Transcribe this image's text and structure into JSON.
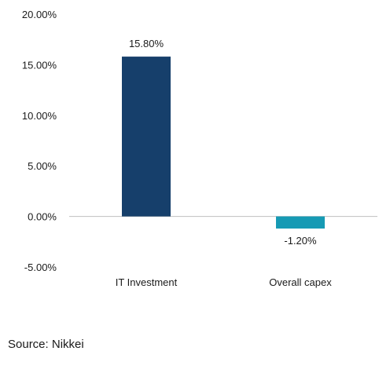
{
  "chart_data": {
    "type": "bar",
    "categories": [
      "IT Investment",
      "Overall capex"
    ],
    "values": [
      15.8,
      -1.2
    ],
    "value_labels": [
      "15.80%",
      "-1.20%"
    ],
    "bar_colors": [
      "#163f6b",
      "#169ab4"
    ],
    "ylim": [
      -5,
      20
    ],
    "yticks": [
      20,
      15,
      10,
      5,
      0,
      -5
    ],
    "ytick_labels": [
      "20.00%",
      "15.00%",
      "10.00%",
      "5.00%",
      "0.00%",
      "-5.00%"
    ],
    "grid": false,
    "zero_line": true
  },
  "source": "Source: Nikkei"
}
